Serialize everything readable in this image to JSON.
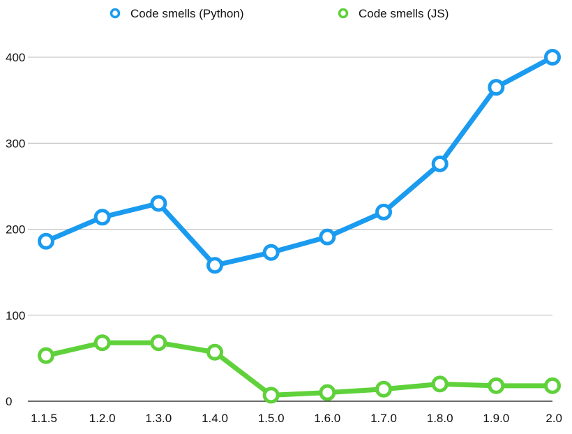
{
  "chart_data": {
    "type": "line",
    "title": "",
    "xlabel": "",
    "ylabel": "",
    "categories": [
      "1.1.5",
      "1.2.0",
      "1.3.0",
      "1.4.0",
      "1.5.0",
      "1.6.0",
      "1.7.0",
      "1.8.0",
      "1.9.0",
      "2.0"
    ],
    "ylim": [
      0,
      400
    ],
    "yticks": [
      "0",
      "100",
      "200",
      "300",
      "400"
    ],
    "grid": true,
    "legend_position": "top",
    "series": [
      {
        "name": "Code smells (Python)",
        "color": "#1a9bf0",
        "values": [
          186,
          214,
          230,
          158,
          173,
          191,
          220,
          276,
          365,
          400
        ]
      },
      {
        "name": "Code smells (JS)",
        "color": "#5fd13a",
        "values": [
          53,
          68,
          68,
          57,
          7,
          10,
          14,
          20,
          18,
          18
        ]
      }
    ]
  }
}
